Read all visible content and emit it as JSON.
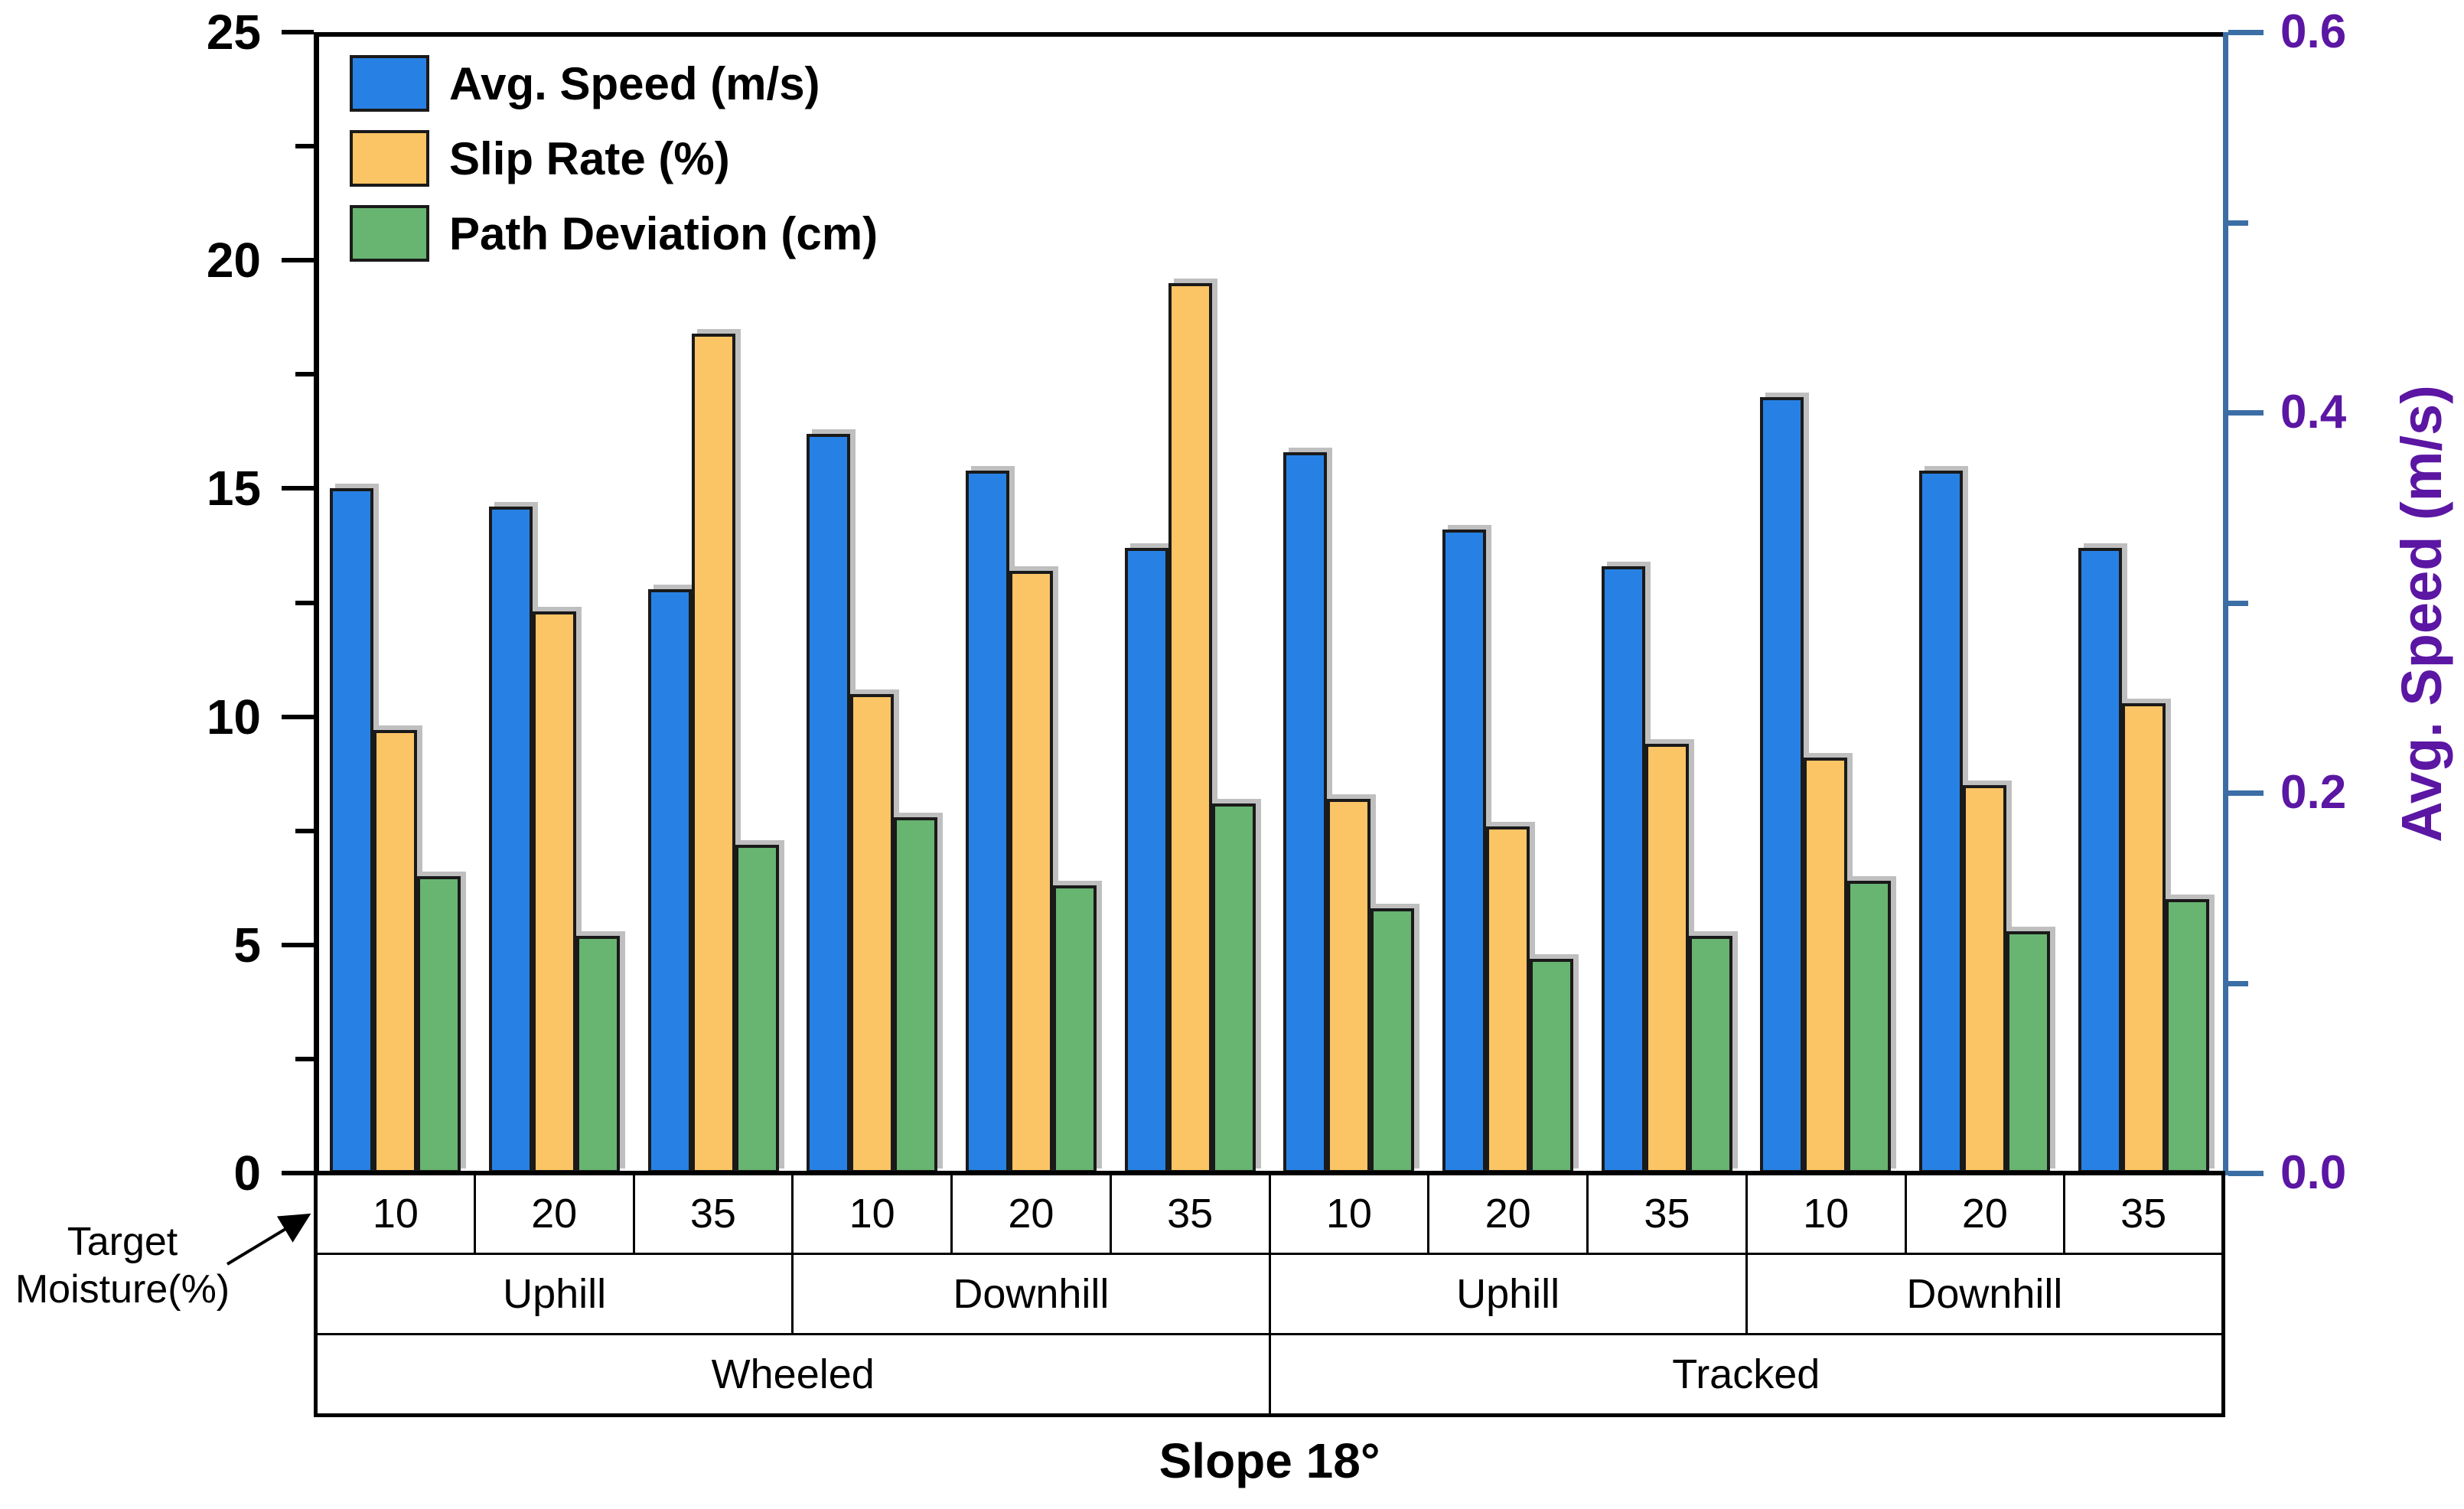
{
  "colors": {
    "avg_speed_bar": "#2781E4",
    "slip_rate_bar": "#FBC464",
    "path_deviation_bar": "#68B471",
    "bar_border": "#1A1A1A",
    "left_axis": "#000000",
    "right_axis_line": "#3B6EA5",
    "right_axis_text": "#5B16A3"
  },
  "chart_data": {
    "type": "bar",
    "title": "Slope 18°",
    "legend_position": "top-left inside plot",
    "grid": "off",
    "x_header": {
      "line1": "Target",
      "line2": "Moisture(%)"
    },
    "left_axis": {
      "min": 0,
      "max": 25,
      "major_step": 5,
      "minor_step": 2.5,
      "tick_labels": [
        "0",
        "5",
        "10",
        "15",
        "20",
        "25"
      ]
    },
    "right_axis": {
      "label": "Avg. Speed (m/s)",
      "min": 0.0,
      "max": 0.6,
      "major_step": 0.2,
      "minor_step": 0.1,
      "tick_labels": [
        "0.0",
        "0.2",
        "0.4",
        "0.6"
      ]
    },
    "groups": {
      "moisture": [
        "10",
        "20",
        "35",
        "10",
        "20",
        "35",
        "10",
        "20",
        "35",
        "10",
        "20",
        "35"
      ],
      "direction": [
        {
          "label": "Uphill",
          "span": 3
        },
        {
          "label": "Downhill",
          "span": 3
        },
        {
          "label": "Uphill",
          "span": 3
        },
        {
          "label": "Downhill",
          "span": 3
        }
      ],
      "vehicle": [
        {
          "label": "Wheeled",
          "span": 6
        },
        {
          "label": "Tracked",
          "span": 6
        }
      ]
    },
    "series": [
      {
        "name": "Avg. Speed (m/s)",
        "color_key": "avg_speed_bar",
        "axis": "right",
        "values_left_scale": [
          15.0,
          14.6,
          12.8,
          16.2,
          15.4,
          13.7,
          15.8,
          14.1,
          13.3,
          17.0,
          15.4,
          13.7
        ],
        "values_right_scale_mps": [
          0.36,
          0.35,
          0.31,
          0.39,
          0.37,
          0.33,
          0.38,
          0.34,
          0.32,
          0.41,
          0.37,
          0.33
        ]
      },
      {
        "name": "Slip Rate (%)",
        "color_key": "slip_rate_bar",
        "axis": "left",
        "values_left_scale": [
          9.7,
          12.3,
          18.4,
          10.5,
          13.2,
          19.5,
          8.2,
          7.6,
          9.4,
          9.1,
          8.5,
          10.3
        ]
      },
      {
        "name": "Path Deviation (cm)",
        "color_key": "path_deviation_bar",
        "axis": "left",
        "values_left_scale": [
          6.5,
          5.2,
          7.2,
          7.8,
          6.3,
          8.1,
          5.8,
          4.7,
          5.2,
          6.4,
          5.3,
          6.0
        ]
      }
    ]
  }
}
